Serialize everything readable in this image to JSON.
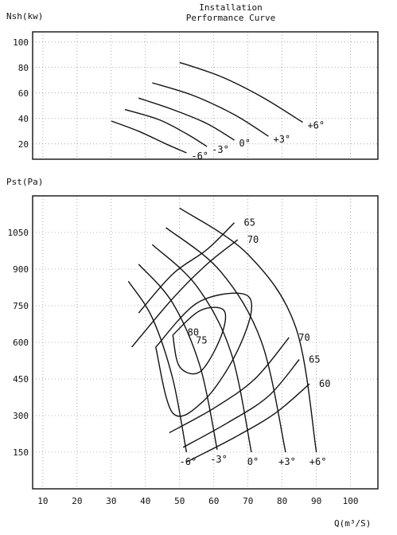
{
  "header": {
    "title_line1": "Installation",
    "title_line2": "Performance Curve"
  },
  "chart_data": [
    {
      "type": "line",
      "ylabel": "Nsh(kw)",
      "ylim": [
        8,
        108
      ],
      "xlim": [
        7,
        108
      ],
      "y_ticks": [
        100,
        80,
        60,
        40,
        20
      ],
      "grid": true,
      "series": [
        {
          "name": "-6°",
          "x": [
            30,
            38,
            46,
            52
          ],
          "y": [
            38,
            30,
            20,
            13
          ]
        },
        {
          "name": "-3°",
          "x": [
            34,
            44,
            52,
            58
          ],
          "y": [
            47,
            39,
            28,
            18
          ]
        },
        {
          "name": "0°",
          "x": [
            38,
            48,
            58,
            66
          ],
          "y": [
            56,
            47,
            36,
            23
          ]
        },
        {
          "name": "+3°",
          "x": [
            42,
            54,
            66,
            76
          ],
          "y": [
            68,
            58,
            43,
            26
          ]
        },
        {
          "name": "+6°",
          "x": [
            50,
            62,
            74,
            86
          ],
          "y": [
            84,
            73,
            57,
            37
          ]
        }
      ]
    },
    {
      "type": "line",
      "xlabel": "Q(m³/S)",
      "ylabel": "Pst(Pa)",
      "xlim": [
        7,
        108
      ],
      "ylim": [
        0,
        1200
      ],
      "x_ticks": [
        10,
        20,
        30,
        40,
        50,
        60,
        70,
        80,
        90,
        100
      ],
      "y_ticks": [
        1050,
        900,
        750,
        600,
        450,
        300,
        150
      ],
      "grid": true,
      "series": [
        {
          "name": "-6°",
          "x": [
            35,
            42,
            48,
            52
          ],
          "y": [
            850,
            700,
            450,
            150
          ]
        },
        {
          "name": "-3°",
          "x": [
            38,
            48,
            56,
            61
          ],
          "y": [
            920,
            760,
            500,
            160
          ]
        },
        {
          "name": "0°",
          "x": [
            42,
            55,
            65,
            71
          ],
          "y": [
            1000,
            830,
            560,
            150
          ]
        },
        {
          "name": "+3°",
          "x": [
            46,
            62,
            74,
            81
          ],
          "y": [
            1070,
            890,
            600,
            150
          ]
        },
        {
          "name": "+6°",
          "x": [
            50,
            70,
            84,
            90
          ],
          "y": [
            1150,
            960,
            660,
            150
          ]
        }
      ],
      "efficiency_curves": [
        {
          "label": "65",
          "x": [
            38,
            48,
            58,
            66
          ],
          "y": [
            720,
            880,
            980,
            1090
          ]
        },
        {
          "label": "70",
          "x": [
            36,
            48,
            58,
            67
          ],
          "y": [
            580,
            780,
            920,
            1020
          ]
        },
        {
          "label": "70",
          "x": [
            47,
            60,
            72,
            82
          ],
          "y": [
            230,
            330,
            450,
            620
          ]
        },
        {
          "label": "65",
          "x": [
            51,
            64,
            76,
            85
          ],
          "y": [
            170,
            270,
            380,
            530
          ]
        },
        {
          "label": "60",
          "x": [
            52,
            66,
            78,
            88
          ],
          "y": [
            110,
            210,
            310,
            430
          ]
        }
      ],
      "contours": [
        {
          "label": "75",
          "x": [
            43,
            55,
            68,
            71,
            66,
            57,
            48
          ],
          "y": [
            580,
            760,
            800,
            730,
            540,
            360,
            310
          ]
        },
        {
          "label": "80",
          "x": [
            48,
            56,
            63,
            62,
            56,
            50
          ],
          "y": [
            630,
            730,
            730,
            620,
            480,
            500
          ]
        }
      ]
    }
  ]
}
